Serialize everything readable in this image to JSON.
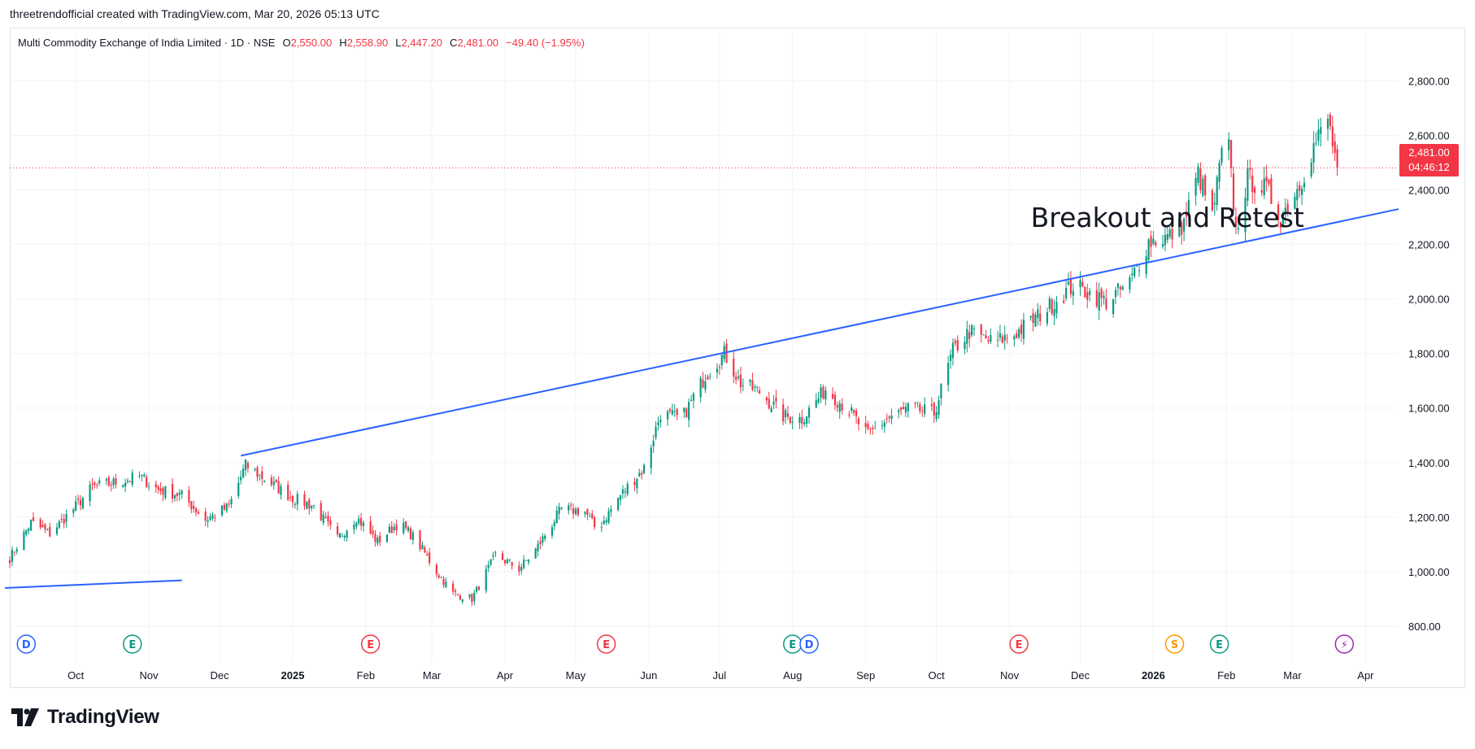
{
  "credit": "threetrendofficial created with TradingView.com, Mar 20, 2026 05:13 UTC",
  "legend": {
    "symbol": "Multi Commodity Exchange of India Limited · 1D · NSE",
    "o_label": "O",
    "o_value": "2,550.00",
    "h_label": "H",
    "h_value": "2,558.90",
    "l_label": "L",
    "l_value": "2,447.20",
    "c_label": "C",
    "c_value": "2,481.00",
    "change": "−49.40 (−1.95%)"
  },
  "price_tag": {
    "price": "2,481.00",
    "countdown": "04:46:12"
  },
  "brand": "TradingView",
  "colors": {
    "up": "#089981",
    "down": "#f23645",
    "trendline": "#2962ff",
    "grid": "#f0f3fa"
  },
  "chart_data": {
    "type": "candlestick",
    "title": "",
    "ylim": [
      740,
      2900
    ],
    "y_ticks": [
      800,
      1000,
      1200,
      1400,
      1600,
      1800,
      2000,
      2200,
      2400,
      2600,
      2800
    ],
    "y_tick_labels": [
      "800.00",
      "1,000.00",
      "1,200.00",
      "1,400.00",
      "1,600.00",
      "1,800.00",
      "2,000.00",
      "2,200.00",
      "2,400.00",
      "2,600.00",
      "2,800.00"
    ],
    "x_start": "2024-09-03",
    "x_end": "2026-04-15",
    "x_ticks": [
      {
        "date": "2024-10-01",
        "label": "Oct",
        "bold": false
      },
      {
        "date": "2024-11-01",
        "label": "Nov",
        "bold": false
      },
      {
        "date": "2024-12-01",
        "label": "Dec",
        "bold": false
      },
      {
        "date": "2025-01-01",
        "label": "2025",
        "bold": true
      },
      {
        "date": "2025-02-01",
        "label": "Feb",
        "bold": false
      },
      {
        "date": "2025-03-01",
        "label": "Mar",
        "bold": false
      },
      {
        "date": "2025-04-01",
        "label": "Apr",
        "bold": false
      },
      {
        "date": "2025-05-01",
        "label": "May",
        "bold": false
      },
      {
        "date": "2025-06-01",
        "label": "Jun",
        "bold": false
      },
      {
        "date": "2025-07-01",
        "label": "Jul",
        "bold": false
      },
      {
        "date": "2025-08-01",
        "label": "Aug",
        "bold": false
      },
      {
        "date": "2025-09-01",
        "label": "Sep",
        "bold": false
      },
      {
        "date": "2025-10-01",
        "label": "Oct",
        "bold": false
      },
      {
        "date": "2025-11-01",
        "label": "Nov",
        "bold": false
      },
      {
        "date": "2025-12-01",
        "label": "Dec",
        "bold": false
      },
      {
        "date": "2026-01-01",
        "label": "2026",
        "bold": true
      },
      {
        "date": "2026-02-01",
        "label": "Feb",
        "bold": false
      },
      {
        "date": "2026-03-01",
        "label": "Mar",
        "bold": false
      },
      {
        "date": "2026-04-01",
        "label": "Apr",
        "bold": false
      }
    ],
    "last_price": 2481,
    "price_path": [
      [
        "2024-09-03",
        1050
      ],
      [
        "2024-09-12",
        1180
      ],
      [
        "2024-09-20",
        1140
      ],
      [
        "2024-09-30",
        1230
      ],
      [
        "2024-10-08",
        1310
      ],
      [
        "2024-10-20",
        1330
      ],
      [
        "2024-10-28",
        1350
      ],
      [
        "2024-11-05",
        1300
      ],
      [
        "2024-11-15",
        1280
      ],
      [
        "2024-11-25",
        1190
      ],
      [
        "2024-12-05",
        1240
      ],
      [
        "2024-12-12",
        1390
      ],
      [
        "2024-12-20",
        1340
      ],
      [
        "2025-01-01",
        1270
      ],
      [
        "2025-01-10",
        1240
      ],
      [
        "2025-01-20",
        1120
      ],
      [
        "2025-01-28",
        1200
      ],
      [
        "2025-02-06",
        1110
      ],
      [
        "2025-02-15",
        1180
      ],
      [
        "2025-02-22",
        1120
      ],
      [
        "2025-03-03",
        1000
      ],
      [
        "2025-03-10",
        920
      ],
      [
        "2025-03-18",
        900
      ],
      [
        "2025-03-28",
        1060
      ],
      [
        "2025-04-07",
        1010
      ],
      [
        "2025-04-14",
        1080
      ],
      [
        "2025-04-25",
        1230
      ],
      [
        "2025-05-05",
        1220
      ],
      [
        "2025-05-10",
        1150
      ],
      [
        "2025-05-20",
        1280
      ],
      [
        "2025-05-30",
        1380
      ],
      [
        "2025-06-06",
        1580
      ],
      [
        "2025-06-15",
        1560
      ],
      [
        "2025-06-25",
        1720
      ],
      [
        "2025-07-03",
        1800
      ],
      [
        "2025-07-10",
        1690
      ],
      [
        "2025-07-18",
        1660
      ],
      [
        "2025-07-28",
        1570
      ],
      [
        "2025-08-05",
        1560
      ],
      [
        "2025-08-15",
        1670
      ],
      [
        "2025-08-25",
        1590
      ],
      [
        "2025-09-02",
        1500
      ],
      [
        "2025-09-10",
        1560
      ],
      [
        "2025-09-20",
        1600
      ],
      [
        "2025-09-30",
        1580
      ],
      [
        "2025-10-08",
        1810
      ],
      [
        "2025-10-15",
        1880
      ],
      [
        "2025-10-25",
        1840
      ],
      [
        "2025-11-03",
        1870
      ],
      [
        "2025-11-15",
        1950
      ],
      [
        "2025-11-28",
        2050
      ],
      [
        "2025-12-05",
        2020
      ],
      [
        "2025-12-12",
        1990
      ],
      [
        "2025-12-22",
        2060
      ],
      [
        "2025-12-30",
        2210
      ],
      [
        "2026-01-08",
        2230
      ],
      [
        "2026-01-14",
        2280
      ],
      [
        "2026-01-20",
        2460
      ],
      [
        "2026-01-26",
        2300
      ],
      [
        "2026-02-01",
        2650
      ],
      [
        "2026-02-05",
        2250
      ],
      [
        "2026-02-10",
        2440
      ],
      [
        "2026-02-18",
        2400
      ],
      [
        "2026-02-24",
        2300
      ],
      [
        "2026-03-04",
        2420
      ],
      [
        "2026-03-10",
        2560
      ],
      [
        "2026-03-16",
        2660
      ],
      [
        "2026-03-20",
        2481
      ]
    ],
    "trendlines": [
      {
        "start": [
          "2024-09-01",
          940
        ],
        "end": [
          "2024-11-15",
          968
        ]
      },
      {
        "start": [
          "2024-12-10",
          1425
        ],
        "end": [
          "2026-04-15",
          2330
        ]
      }
    ],
    "annotations": [
      {
        "text": "Breakout and Retest",
        "date": "2025-11-10",
        "price": 2265
      }
    ],
    "event_markers": [
      {
        "date": "2024-09-10",
        "letter": "D",
        "color": "#2962ff"
      },
      {
        "date": "2024-10-25",
        "letter": "E",
        "color": "#089981"
      },
      {
        "date": "2025-02-03",
        "letter": "E",
        "color": "#f23645"
      },
      {
        "date": "2025-05-14",
        "letter": "E",
        "color": "#f23645"
      },
      {
        "date": "2025-08-01",
        "letter": "E",
        "color": "#089981"
      },
      {
        "date": "2025-08-08",
        "letter": "D",
        "color": "#2962ff"
      },
      {
        "date": "2025-11-05",
        "letter": "E",
        "color": "#f23645"
      },
      {
        "date": "2026-01-10",
        "letter": "S",
        "color": "#ff9800"
      },
      {
        "date": "2026-01-29",
        "letter": "E",
        "color": "#089981"
      },
      {
        "date": "2026-03-23",
        "letter": "⚡",
        "color": "#9c27b0"
      }
    ]
  }
}
